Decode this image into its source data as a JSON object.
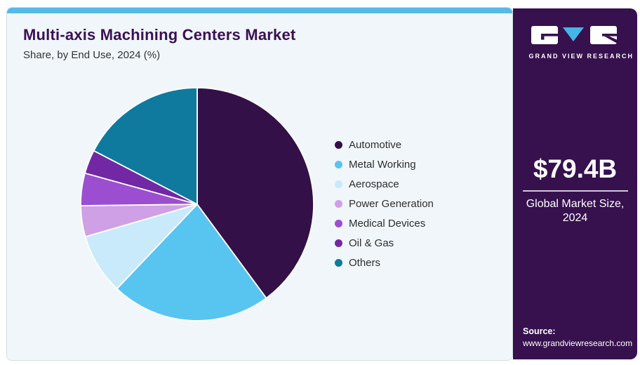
{
  "header": {
    "title": "Multi-axis Machining Centers Market",
    "subtitle": "Share, by End Use, 2024 (%)"
  },
  "sidebar": {
    "logo_text": "GRAND VIEW RESEARCH",
    "market_size_value": "$79.4B",
    "market_size_label_line1": "Global Market Size,",
    "market_size_label_line2": "2024",
    "source_label": "Source:",
    "source_url": "www.grandviewresearch.com"
  },
  "theme": {
    "accent_bar": "#55b9e9",
    "title_color": "#3b1053",
    "card_bg": "#f0f6fa",
    "sidebar_bg": "#36114d",
    "logo_v_blue": "#45b4e6"
  },
  "chart_data": {
    "type": "pie",
    "title": "Multi-axis Machining Centers Market Share, by End Use, 2024 (%)",
    "unit": "%",
    "start_angle_deg": 0,
    "direction": "clockwise",
    "legend_position": "right",
    "categories": [
      "Automotive",
      "Metal Working",
      "Aerospace",
      "Power Generation",
      "Medical Devices",
      "Oil & Gas",
      "Others"
    ],
    "values": [
      39.9,
      22.2,
      8.4,
      4.3,
      4.5,
      3.3,
      17.4
    ],
    "colors": [
      "#341048",
      "#57c5f0",
      "#c8eafa",
      "#cfa0e6",
      "#9b4fd0",
      "#7227a5",
      "#0f7a9e"
    ]
  }
}
